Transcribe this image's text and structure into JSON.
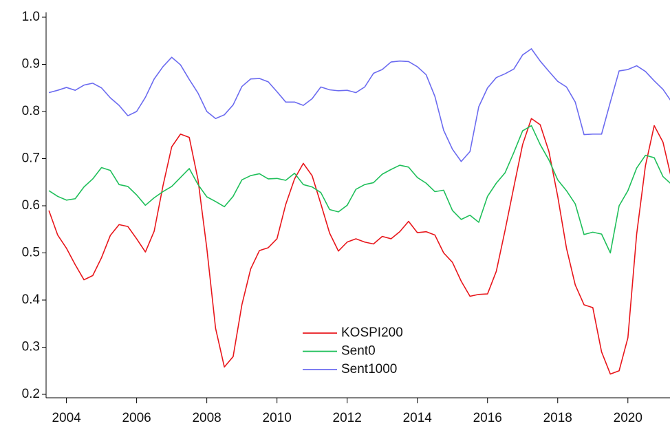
{
  "chart_data": {
    "type": "line",
    "x": [
      2003.5,
      2003.75,
      2004,
      2004.25,
      2004.5,
      2004.75,
      2005,
      2005.25,
      2005.5,
      2005.75,
      2006,
      2006.25,
      2006.5,
      2006.75,
      2007,
      2007.25,
      2007.5,
      2007.75,
      2008,
      2008.25,
      2008.5,
      2008.75,
      2009,
      2009.25,
      2009.5,
      2009.75,
      2010,
      2010.25,
      2010.5,
      2010.75,
      2011,
      2011.25,
      2011.5,
      2011.75,
      2012,
      2012.25,
      2012.5,
      2012.75,
      2013,
      2013.25,
      2013.5,
      2013.75,
      2014,
      2014.25,
      2014.5,
      2014.75,
      2015,
      2015.25,
      2015.5,
      2015.75,
      2016,
      2016.25,
      2016.5,
      2016.75,
      2017,
      2017.25,
      2017.5,
      2017.75,
      2018,
      2018.25,
      2018.5,
      2018.75,
      2019,
      2019.25,
      2019.5,
      2019.75,
      2020,
      2020.25,
      2020.5,
      2020.75,
      2021,
      2021.25
    ],
    "series": [
      {
        "name": "KOSPI200",
        "color": "#e8161b",
        "values": [
          0.59,
          0.538,
          0.51,
          0.475,
          0.443,
          0.452,
          0.49,
          0.537,
          0.56,
          0.556,
          0.53,
          0.502,
          0.546,
          0.642,
          0.725,
          0.752,
          0.745,
          0.655,
          0.51,
          0.34,
          0.258,
          0.28,
          0.39,
          0.466,
          0.505,
          0.511,
          0.53,
          0.603,
          0.657,
          0.69,
          0.664,
          0.604,
          0.542,
          0.504,
          0.523,
          0.53,
          0.523,
          0.519,
          0.535,
          0.53,
          0.545,
          0.567,
          0.543,
          0.545,
          0.538,
          0.5,
          0.48,
          0.44,
          0.408,
          0.412,
          0.413,
          0.461,
          0.548,
          0.64,
          0.73,
          0.785,
          0.772,
          0.715,
          0.62,
          0.51,
          0.432,
          0.39,
          0.384,
          0.29,
          0.243,
          0.25,
          0.32,
          0.54,
          0.685,
          0.77,
          0.735,
          0.655
        ]
      },
      {
        "name": "Sent0",
        "color": "#1fbf5a",
        "values": [
          0.632,
          0.62,
          0.612,
          0.615,
          0.64,
          0.657,
          0.681,
          0.675,
          0.645,
          0.641,
          0.623,
          0.601,
          0.617,
          0.63,
          0.641,
          0.66,
          0.679,
          0.645,
          0.619,
          0.609,
          0.598,
          0.62,
          0.655,
          0.664,
          0.668,
          0.657,
          0.658,
          0.654,
          0.669,
          0.645,
          0.64,
          0.628,
          0.592,
          0.587,
          0.601,
          0.635,
          0.645,
          0.649,
          0.667,
          0.677,
          0.686,
          0.682,
          0.66,
          0.648,
          0.63,
          0.633,
          0.59,
          0.571,
          0.58,
          0.565,
          0.62,
          0.648,
          0.67,
          0.713,
          0.759,
          0.77,
          0.73,
          0.697,
          0.655,
          0.632,
          0.604,
          0.539,
          0.544,
          0.54,
          0.5,
          0.6,
          0.632,
          0.68,
          0.707,
          0.702,
          0.662,
          0.645
        ]
      },
      {
        "name": "Sent1000",
        "color": "#6b6bf0",
        "values": [
          0.84,
          0.845,
          0.851,
          0.845,
          0.856,
          0.86,
          0.85,
          0.829,
          0.813,
          0.791,
          0.8,
          0.83,
          0.869,
          0.895,
          0.915,
          0.899,
          0.868,
          0.839,
          0.8,
          0.785,
          0.793,
          0.814,
          0.853,
          0.869,
          0.87,
          0.863,
          0.842,
          0.82,
          0.82,
          0.813,
          0.827,
          0.852,
          0.846,
          0.844,
          0.845,
          0.84,
          0.852,
          0.881,
          0.889,
          0.905,
          0.907,
          0.906,
          0.895,
          0.878,
          0.832,
          0.76,
          0.72,
          0.694,
          0.715,
          0.81,
          0.85,
          0.872,
          0.88,
          0.89,
          0.92,
          0.933,
          0.907,
          0.885,
          0.864,
          0.852,
          0.82,
          0.751,
          0.752,
          0.752,
          0.82,
          0.886,
          0.889,
          0.897,
          0.885,
          0.865,
          0.847,
          0.82
        ]
      }
    ],
    "xlim": [
      2003.42,
      2021.2
    ],
    "xticks": [
      2004,
      2006,
      2008,
      2010,
      2012,
      2014,
      2016,
      2018,
      2020
    ],
    "ylim": [
      0.2,
      1.0
    ],
    "yticks": [
      {
        "value": 0.2,
        "label": "0.2"
      },
      {
        "value": 0.3,
        "label": "0.3"
      },
      {
        "value": 0.4,
        "label": "0.4"
      },
      {
        "value": 0.5,
        "label": "0.5"
      },
      {
        "value": 0.6,
        "label": "0.6"
      },
      {
        "value": 0.7,
        "label": "0.7"
      },
      {
        "value": 0.8,
        "label": "0.8"
      },
      {
        "value": 0.9,
        "label": "0.9"
      },
      {
        "value": 1.0,
        "label": "1.0"
      }
    ],
    "grid": false,
    "legend": "lower center"
  }
}
